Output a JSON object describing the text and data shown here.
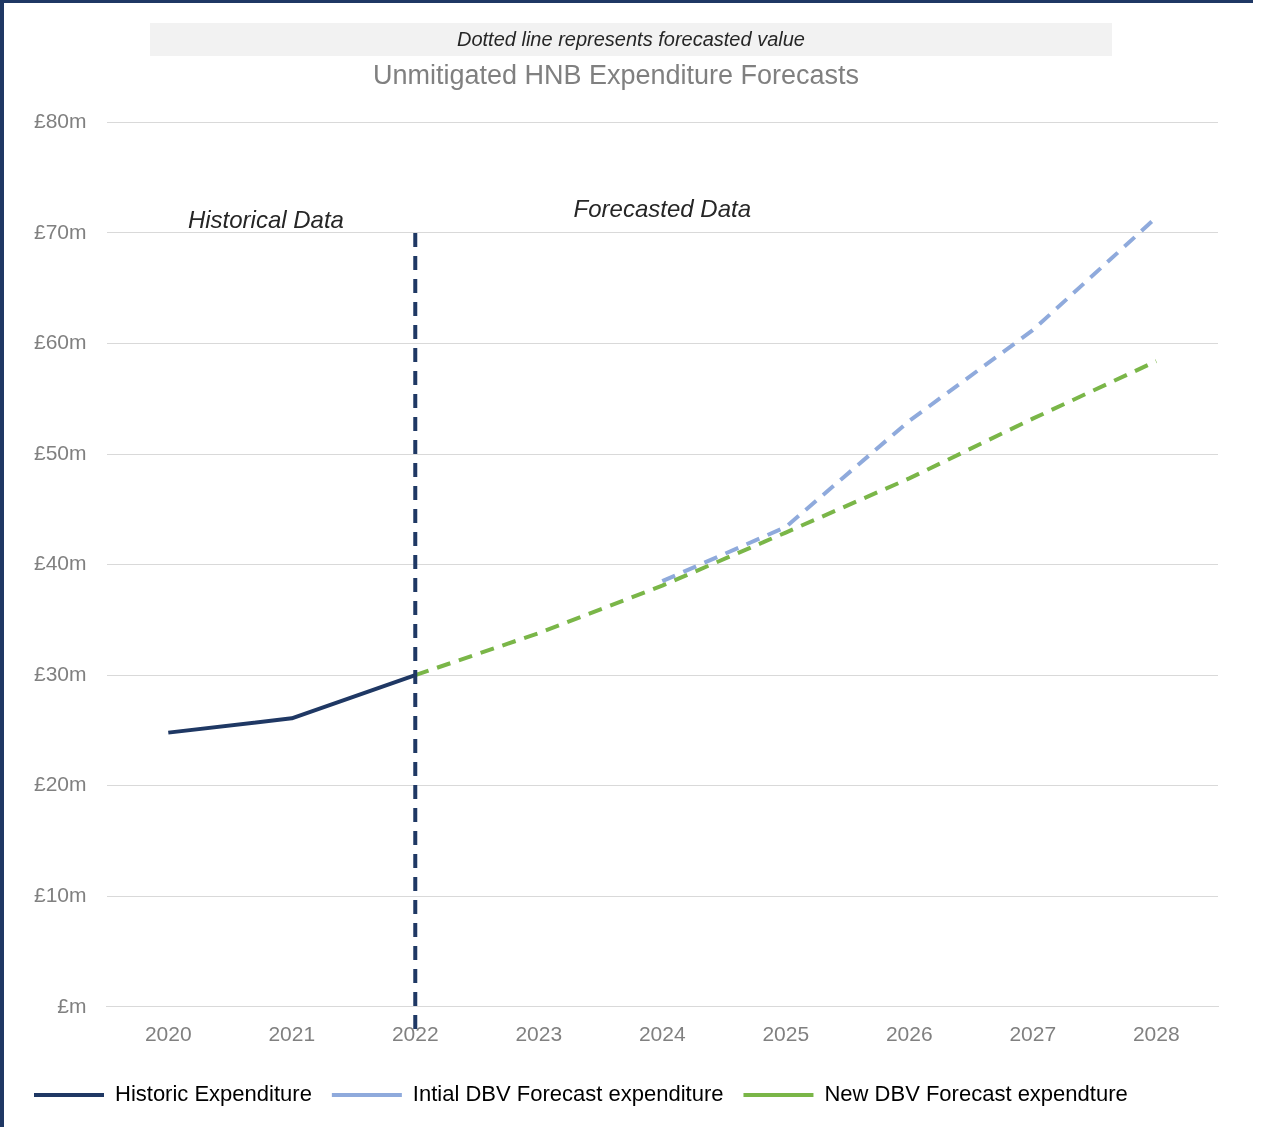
{
  "chart_data": {
    "type": "line",
    "title": "Unmitigated HNB Expenditure Forecasts",
    "subtitle": "Dotted line represents forecasted value",
    "categories": [
      "2020",
      "2021",
      "2022",
      "2023",
      "2024",
      "2025",
      "2026",
      "2027",
      "2028"
    ],
    "series": [
      {
        "name": "Historic Expenditure",
        "color": "#1f3864",
        "line_style": "solid",
        "values": [
          24.8,
          26.1,
          30.0,
          null,
          null,
          null,
          null,
          null,
          null
        ]
      },
      {
        "name": "Intial DBV Forecast expenditure",
        "color": "#8faadc",
        "line_style": "dashed",
        "values": [
          null,
          null,
          null,
          null,
          38.5,
          43.4,
          53.0,
          61.2,
          71.4
        ]
      },
      {
        "name": "New DBV Forecast expendture",
        "color": "#7ab648",
        "line_style": "dashed",
        "values": [
          null,
          null,
          30.0,
          33.8,
          38.1,
          42.9,
          47.8,
          53.2,
          58.4
        ]
      }
    ],
    "ylim": [
      0,
      80
    ],
    "yticks": [
      {
        "value": 0,
        "label": "£m"
      },
      {
        "value": 10,
        "label": "£10m"
      },
      {
        "value": 20,
        "label": "£20m"
      },
      {
        "value": 30,
        "label": "£30m"
      },
      {
        "value": 40,
        "label": "£40m"
      },
      {
        "value": 50,
        "label": "£50m"
      },
      {
        "value": 60,
        "label": "£60m"
      },
      {
        "value": 70,
        "label": "£70m"
      },
      {
        "value": 80,
        "label": "£80m"
      }
    ],
    "grid": "y",
    "legend": "bottom",
    "marker": "none",
    "ref_lines": [
      {
        "axis": "x",
        "value": "2022",
        "color": "#1f3864",
        "line_style": "dashed"
      }
    ],
    "annotations": [
      "Historical Data",
      "Forecasted Data"
    ]
  }
}
